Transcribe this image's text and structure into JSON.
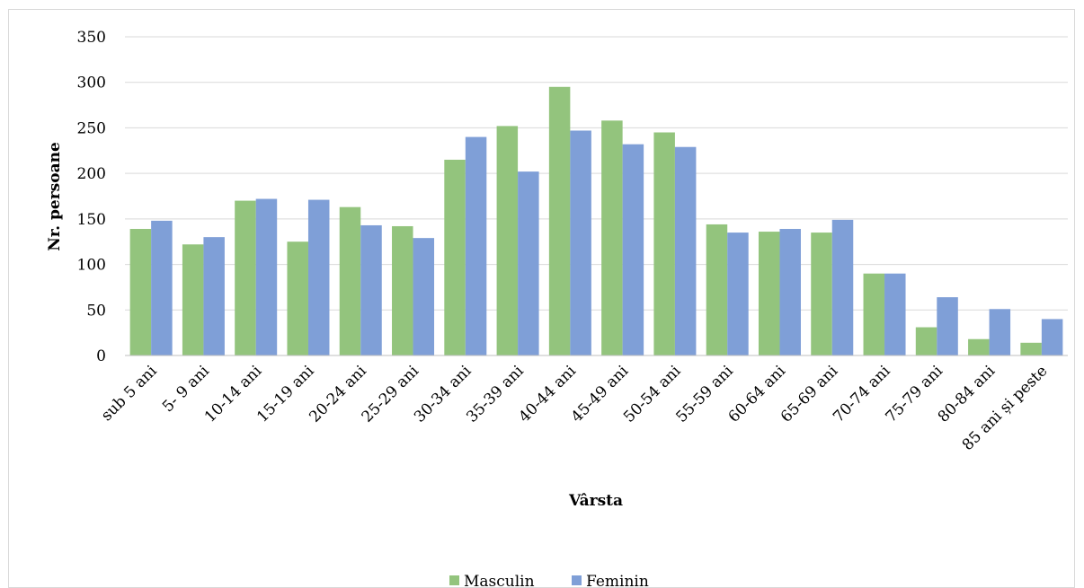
{
  "chart_data": {
    "type": "bar",
    "title": "",
    "xlabel": "Vârsta",
    "ylabel": "Nr. persoane",
    "ylim": [
      0,
      350
    ],
    "yticks": [
      0,
      50,
      100,
      150,
      200,
      250,
      300,
      350
    ],
    "grid": true,
    "legend_position": "bottom",
    "categories": [
      "sub 5 ani",
      "5- 9 ani",
      "10-14 ani",
      "15-19 ani",
      "20-24 ani",
      "25-29 ani",
      "30-34 ani",
      "35-39 ani",
      "40-44 ani",
      "45-49 ani",
      "50-54 ani",
      "55-59 ani",
      "60-64 ani",
      "65-69 ani",
      "70-74 ani",
      "75-79 ani",
      "80-84 ani",
      "85 ani și peste"
    ],
    "series": [
      {
        "name": "Masculin",
        "color": "#93c47d",
        "values": [
          139,
          122,
          170,
          125,
          163,
          142,
          215,
          252,
          295,
          258,
          245,
          144,
          136,
          135,
          90,
          31,
          18,
          14
        ]
      },
      {
        "name": "Feminin",
        "color": "#7f9fd7",
        "values": [
          148,
          130,
          172,
          171,
          143,
          129,
          240,
          202,
          247,
          232,
          229,
          135,
          139,
          149,
          90,
          64,
          51,
          40
        ]
      }
    ]
  }
}
